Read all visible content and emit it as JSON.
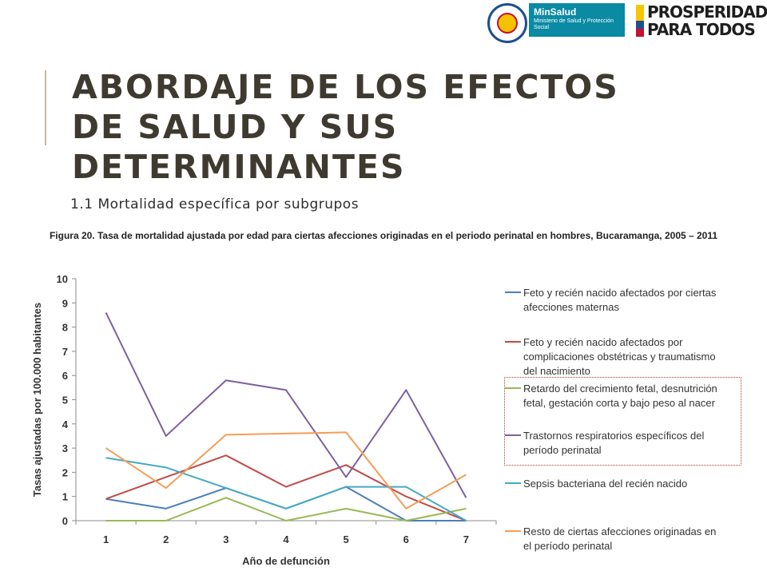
{
  "header": {
    "logos": {
      "minsalud_name": "MinSalud",
      "minsalud_sub": "Ministerio de Salud y Protección Social",
      "prosperidad_line1": "PROSPERIDAD",
      "prosperidad_line2": "PARA TODOS"
    }
  },
  "slide": {
    "title": "ABORDAJE DE LOS EFECTOS DE SALUD Y SUS DETERMINANTES",
    "subtitle": "1.1 Mortalidad específica por subgrupos"
  },
  "colors": {
    "title": "#3e3a30",
    "accent_bar": "#c6bd98",
    "highlight_box": "#c0392b"
  },
  "chart_data": {
    "type": "line",
    "title": "Figura 20. Tasa de mortalidad ajustada por edad para ciertas afecciones originadas en el periodo perinatal en hombres, Bucaramanga, 2005 – 2011",
    "xlabel": "Año de defunción",
    "ylabel": "Tasas ajustadas por 100.000 habitantes",
    "categories": [
      "1",
      "2",
      "3",
      "4",
      "5",
      "6",
      "7"
    ],
    "ylim": [
      0,
      10
    ],
    "yticks": [
      0,
      1,
      2,
      3,
      4,
      5,
      6,
      7,
      8,
      9,
      10
    ],
    "grid": false,
    "legend_position": "right",
    "series": [
      {
        "name": "Feto y recién nacido afectados por ciertas afecciones maternas",
        "color": "#4a7ebb",
        "values": [
          0.9,
          0.5,
          1.35,
          0.5,
          1.4,
          0,
          0
        ]
      },
      {
        "name": "Feto y recién nacido afectados por complicaciones obstétricas y traumatismo del nacimiento",
        "color": "#be4b48",
        "values": [
          0.9,
          1.8,
          2.7,
          1.4,
          2.3,
          1.0,
          0
        ]
      },
      {
        "name": "Retardo del crecimiento fetal, desnutrición fetal, gestación corta y bajo peso al nacer",
        "color": "#98b954",
        "values": [
          0,
          0,
          0.95,
          0,
          0.5,
          0,
          0.5
        ]
      },
      {
        "name": "Trastornos respiratorios específicos del período perinatal",
        "color": "#7d60a0",
        "values": [
          8.6,
          3.5,
          5.8,
          5.4,
          1.8,
          5.4,
          0.95
        ]
      },
      {
        "name": "Sepsis bacteriana del recién nacido",
        "color": "#46aac5",
        "values": [
          2.6,
          2.2,
          1.35,
          0.5,
          1.4,
          1.4,
          0
        ]
      },
      {
        "name": "Resto de ciertas afecciones originadas en el período perinatal",
        "color": "#f59d56",
        "values": [
          3.0,
          1.35,
          3.55,
          3.6,
          3.65,
          0.5,
          1.9
        ]
      }
    ]
  }
}
